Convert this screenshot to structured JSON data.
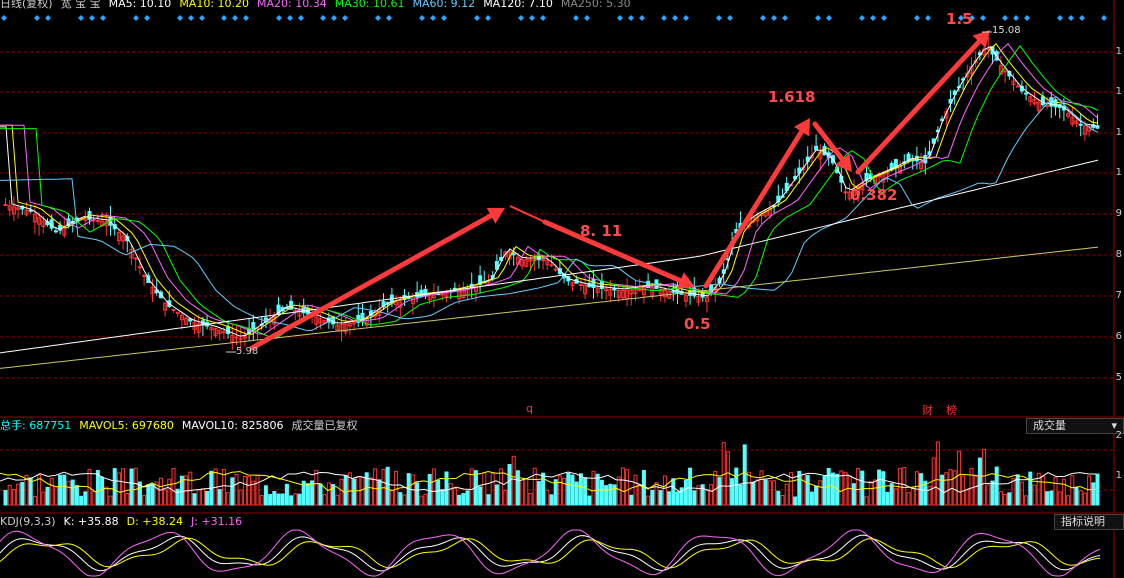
{
  "header": {
    "chart_name": "日线(复权)",
    "stock_name": "宽 宝 宝",
    "ma": [
      {
        "label": "MA5: 10.10",
        "color": "#ffffff"
      },
      {
        "label": "MA10: 10.20",
        "color": "#ffff00"
      },
      {
        "label": "MA20: 10.34",
        "color": "#ff66ff"
      },
      {
        "label": "MA30: 10.61",
        "color": "#00ff00"
      },
      {
        "label": "MA60: 9.12",
        "color": "#66ccff"
      },
      {
        "label": "MA120: 7.10",
        "color": "#ffffff"
      },
      {
        "label": "MA250: 5.30",
        "color": "#888888"
      }
    ]
  },
  "price_axis_labels": [
    "1",
    "1",
    "1",
    "1",
    "1",
    "9",
    "8",
    "7",
    "6",
    "5"
  ],
  "annotations": {
    "fib_1_5": "1.5",
    "fib_1_618": "1.618",
    "fib_0_382": "0.382",
    "fib_0_5": "0.5",
    "label_8_11": "8. 11",
    "high_label": "15.08",
    "low_label": "5.98"
  },
  "event_markers": {
    "q": "q",
    "cai": "财",
    "bang": "榜"
  },
  "volume_header": {
    "total": "总手: 687751",
    "mavol5": "MAVOL5: 697680",
    "mavol10": "MAVOL10: 825806",
    "note": "成交量已复权",
    "dropdown": "成交量",
    "axis": [
      "2",
      "1"
    ]
  },
  "kdj_header": {
    "title": "KDJ(9,3,3)",
    "k": "K: +35.88",
    "d": "D: +38.24",
    "j": "J: +31.16",
    "help": "指标说明"
  },
  "colors": {
    "up": "#ff3232",
    "down": "#54ffff",
    "grid": "#8b0000",
    "arrow": "#ff3a3a"
  },
  "chart_data": {
    "type": "candlestick",
    "anchor_prices": [
      {
        "name": "low",
        "value": 5.98
      },
      {
        "name": "high",
        "value": 15.08
      }
    ],
    "price_levels": [
      5,
      6,
      7,
      8,
      9
    ],
    "latest_ma": {
      "MA5": 10.1,
      "MA10": 10.2,
      "MA20": 10.34,
      "MA30": 10.61,
      "MA60": 9.12,
      "MA120": 7.1,
      "MA250": 5.3
    },
    "volume": {
      "total": 687751,
      "MAVOL5": 697680,
      "MAVOL10": 825806
    },
    "kdj": {
      "K": 35.88,
      "D": 38.24,
      "J": 31.16
    }
  }
}
